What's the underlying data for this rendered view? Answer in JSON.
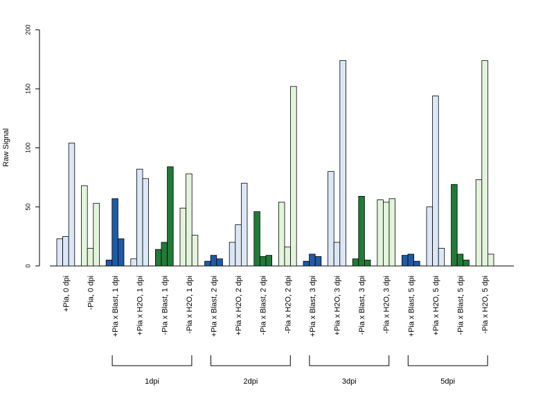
{
  "chart_data": {
    "type": "bar",
    "ylabel": "Raw Signal",
    "ylim": [
      0,
      200
    ],
    "yticks": [
      0,
      50,
      100,
      150,
      200
    ],
    "categories": [
      "+Pia, 0 dpi",
      "-Pia, 0 dpi",
      "+Pia x Blast, 1 dpi",
      "+Pia x H2O, 1 dpi",
      "-Pia x Blast, 1 dpi",
      "-Pia x H2O, 1 dpi",
      "+Pia x Blast, 2 dpi",
      "+Pia x H2O, 2 dpi",
      "-Pia x Blast, 2 dpi",
      "-Pia x H2O, 2 dpi",
      "+Pia x Blast, 3 dpi",
      "+Pia x H2O, 3 dpi",
      "-Pia x Blast, 3 dpi",
      "-Pia x H2O, 3 dpi",
      "+Pia x Blast, 5 dpi",
      "+Pia x H2O, 5 dpi",
      "-Pia x Blast, 5 dpi",
      "-Pia x H2O, 5 dpi"
    ],
    "values": [
      [
        23,
        25,
        104
      ],
      [
        68,
        15,
        53
      ],
      [
        5,
        57,
        23
      ],
      [
        6,
        82,
        74
      ],
      [
        14,
        20,
        84
      ],
      [
        49,
        78,
        26
      ],
      [
        4,
        9,
        6
      ],
      [
        20,
        35,
        70
      ],
      [
        46,
        8,
        9
      ],
      [
        54,
        16,
        152
      ],
      [
        4,
        10,
        8
      ],
      [
        80,
        20,
        174
      ],
      [
        6,
        59,
        5
      ],
      [
        56,
        54,
        57
      ],
      [
        9,
        10,
        4
      ],
      [
        50,
        144,
        15
      ],
      [
        69,
        10,
        5
      ],
      [
        73,
        174,
        10
      ]
    ],
    "bar_colors": [
      "#dbe7f4",
      "#e2f4db",
      "#1f5aa6",
      "#dbe7f4",
      "#217a37",
      "#e2f4db",
      "#1f5aa6",
      "#dbe7f4",
      "#217a37",
      "#e2f4db",
      "#1f5aa6",
      "#dbe7f4",
      "#217a37",
      "#e2f4db",
      "#1f5aa6",
      "#dbe7f4",
      "#217a37",
      "#e2f4db"
    ],
    "groups": [
      {
        "label": "1dpi",
        "start": 2,
        "end": 5
      },
      {
        "label": "2dpi",
        "start": 6,
        "end": 9
      },
      {
        "label": "3dpi",
        "start": 10,
        "end": 13
      },
      {
        "label": "5dpi",
        "start": 14,
        "end": 17
      }
    ],
    "grid": false,
    "legend": "none"
  }
}
